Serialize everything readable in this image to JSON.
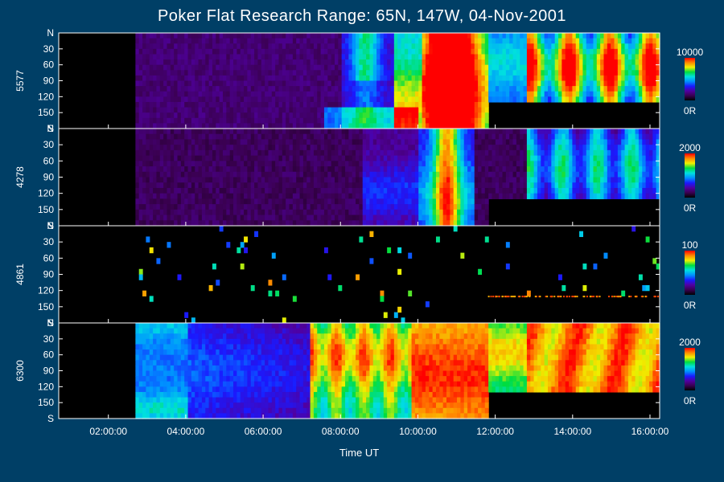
{
  "title": "Poker Flat Research Range: 65N, 147W, 04-Nov-2001",
  "colors": {
    "background": "#003f66",
    "foreground": "#ffffff",
    "colorbar": [
      "#000000",
      "#3a0050",
      "#5000a0",
      "#1a1aff",
      "#0090ff",
      "#00e0e0",
      "#00dd40",
      "#f0f000",
      "#ff8800",
      "#ff0000"
    ]
  },
  "chart_data": {
    "type": "heatmap",
    "title": "Poker Flat Research Range: 65N, 147W, 04-Nov-2001",
    "xlabel": "Time UT",
    "xlim": [
      "00:43:00",
      "16:15:00"
    ],
    "x_ticks": [
      "02:00:00",
      "04:00:00",
      "06:00:00",
      "08:00:00",
      "10:00:00",
      "12:00:00",
      "14:00:00",
      "16:00:00"
    ],
    "x_tick_values_hours": [
      2,
      4,
      6,
      8,
      10,
      12,
      14,
      16
    ],
    "y_ticks": [
      "N",
      "30",
      "60",
      "90",
      "120",
      "150",
      "S"
    ],
    "y_tick_values_deg": [
      0,
      30,
      60,
      90,
      120,
      150,
      180
    ],
    "panels": [
      {
        "name": "5577",
        "colorbar_max": "10000",
        "colorbar_min": "0R"
      },
      {
        "name": "4278",
        "colorbar_max": "2000",
        "colorbar_min": "0R"
      },
      {
        "name": "4861",
        "colorbar_max": "100",
        "colorbar_min": "0R"
      },
      {
        "name": "6300",
        "colorbar_max": "2000",
        "colorbar_min": "0R"
      }
    ]
  }
}
